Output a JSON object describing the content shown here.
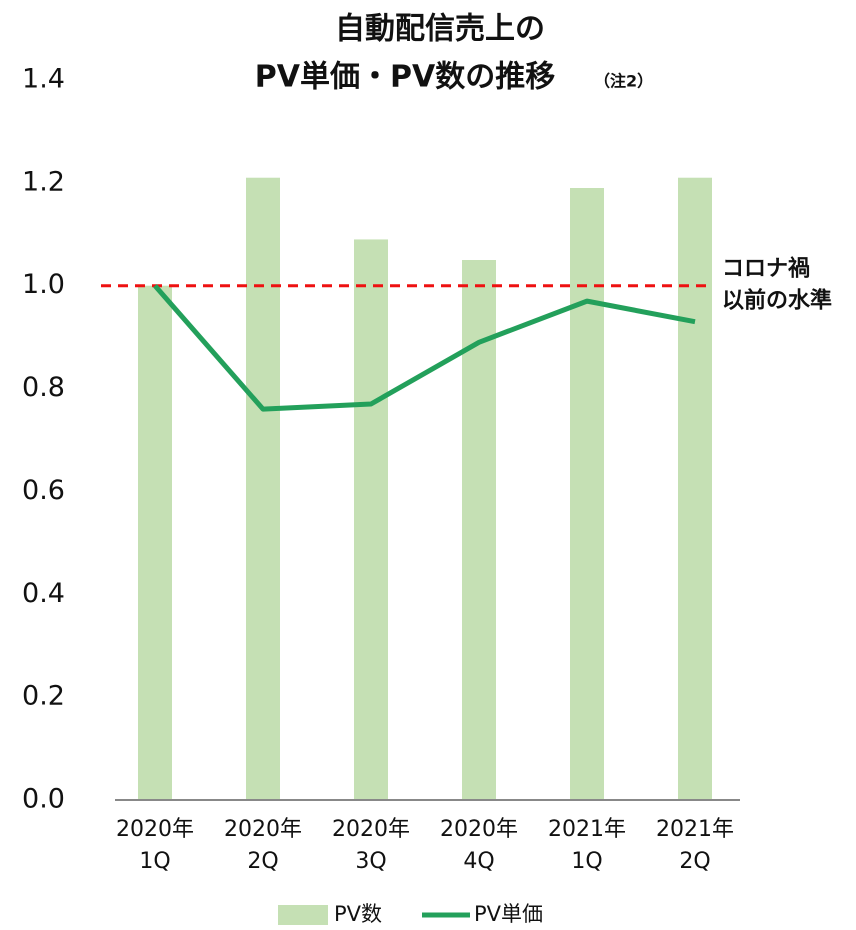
{
  "chart_data": {
    "type": "bar",
    "title": "自動配信売上の",
    "subtitle": "PV単価・PV数の推移",
    "title_note": "（注2）",
    "categories": [
      "2020年\n1Q",
      "2020年\n2Q",
      "2020年\n3Q",
      "2020年\n4Q",
      "2021年\n1Q",
      "2021年\n2Q"
    ],
    "series": [
      {
        "name": "PV数",
        "type": "bar",
        "color": "#c5e0b4",
        "values": [
          1.0,
          1.21,
          1.09,
          1.05,
          1.19,
          1.21
        ]
      },
      {
        "name": "PV単価",
        "type": "line",
        "color": "#23a05b",
        "values": [
          1.0,
          0.76,
          0.77,
          0.89,
          0.97,
          0.93
        ]
      }
    ],
    "ylim": [
      0,
      1.4
    ],
    "yticks": [
      {
        "value": 0,
        "label": "0.0"
      },
      0.2,
      0.4,
      0.6,
      0.8,
      {
        "value": 1,
        "label": "1.0"
      },
      1.2,
      1.4
    ],
    "reference_line": {
      "value": 1,
      "color": "#ee1111",
      "label": [
        "コロナ禍",
        "以前の水準"
      ]
    },
    "grid": false,
    "legend": "bottom"
  }
}
